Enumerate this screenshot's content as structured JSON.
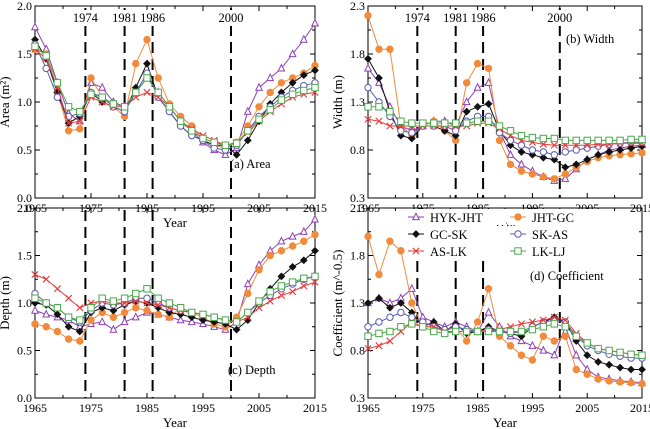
{
  "chart_data": [
    {
      "type": "line",
      "panel": "(a) Area",
      "xlabel": "Year",
      "ylabel": "Area (m²)",
      "xlim": [
        1965,
        2015
      ],
      "ylim": [
        0,
        2
      ],
      "xticks": [
        "1965",
        "1975",
        "1985",
        "1995",
        "2005",
        "2015"
      ],
      "yticks": [
        "0.0",
        "0.5",
        "1.0",
        "1.5",
        "2.0"
      ],
      "marked_years": [
        "1974",
        "1981",
        "1986",
        "2000"
      ],
      "x": [
        1965,
        1967,
        1969,
        1971,
        1973,
        1975,
        1977,
        1979,
        1981,
        1983,
        1985,
        1987,
        1989,
        1991,
        1993,
        1995,
        1997,
        1999,
        2001,
        2003,
        2005,
        2007,
        2009,
        2011,
        2013,
        2015
      ],
      "series": [
        {
          "name": "HYK-JHT",
          "color": "#8c3fb5",
          "marker": "triangle",
          "values": [
            1.78,
            1.55,
            1.2,
            0.88,
            0.8,
            1.2,
            1.15,
            1.0,
            0.95,
            1.1,
            1.25,
            1.1,
            0.95,
            0.8,
            0.7,
            0.58,
            0.5,
            0.45,
            0.52,
            0.9,
            1.15,
            1.25,
            1.35,
            1.5,
            1.65,
            1.82
          ]
        },
        {
          "name": "JHT-GC",
          "color": "#f28a3c",
          "marker": "circle",
          "values": [
            1.55,
            1.5,
            1.1,
            0.7,
            0.72,
            1.25,
            1.05,
            0.95,
            0.85,
            1.4,
            1.65,
            1.25,
            0.98,
            0.85,
            0.75,
            0.6,
            0.55,
            0.52,
            0.58,
            0.75,
            0.95,
            1.1,
            1.2,
            1.25,
            1.3,
            1.38
          ]
        },
        {
          "name": "GC-SK",
          "color": "#111111",
          "marker": "diamond",
          "values": [
            1.65,
            1.45,
            1.1,
            0.78,
            0.85,
            1.1,
            1.0,
            0.95,
            0.9,
            1.15,
            1.4,
            1.05,
            0.9,
            0.75,
            0.65,
            0.6,
            0.55,
            0.55,
            0.45,
            0.6,
            0.8,
            0.98,
            1.1,
            1.2,
            1.28,
            1.33
          ]
        },
        {
          "name": "SK-AS",
          "color": "#5a5ab0",
          "marker": "circle-open",
          "values": [
            1.6,
            1.35,
            1.05,
            0.85,
            0.88,
            1.1,
            1.05,
            0.95,
            0.9,
            1.1,
            1.3,
            1.05,
            0.9,
            0.75,
            0.65,
            0.6,
            0.52,
            0.5,
            0.55,
            0.7,
            0.85,
            0.95,
            1.05,
            1.12,
            1.17,
            1.2
          ]
        },
        {
          "name": "AS-LK",
          "color": "#e83a3a",
          "marker": "x",
          "values": [
            1.55,
            1.45,
            1.15,
            0.78,
            0.8,
            1.05,
            1.0,
            0.95,
            0.95,
            1.05,
            1.1,
            1.05,
            0.95,
            0.8,
            0.72,
            0.65,
            0.6,
            0.55,
            0.58,
            0.68,
            0.8,
            0.9,
            0.98,
            1.05,
            1.08,
            1.1
          ]
        },
        {
          "name": "LK-LJ",
          "color": "#4aa84a",
          "marker": "square-open",
          "values": [
            1.58,
            1.48,
            1.2,
            0.95,
            0.9,
            1.08,
            1.05,
            0.98,
            0.95,
            1.1,
            1.25,
            1.1,
            0.95,
            0.8,
            0.7,
            0.62,
            0.58,
            0.55,
            0.57,
            0.7,
            0.82,
            0.92,
            1.02,
            1.08,
            1.12,
            1.15
          ]
        }
      ]
    },
    {
      "type": "line",
      "panel": "(b) Width",
      "xlabel": "Year",
      "ylabel": "Width (m)",
      "xlim": [
        1965,
        2015
      ],
      "ylim": [
        0.3,
        2.3
      ],
      "xticks": [
        "1965",
        "1975",
        "1985",
        "1995",
        "2005",
        "2015"
      ],
      "yticks": [
        "0.3",
        "0.8",
        "1.3",
        "1.8",
        "2.3"
      ],
      "marked_years": [
        "1974",
        "1981",
        "1986",
        "2000"
      ],
      "x": [
        1965,
        1967,
        1969,
        1971,
        1973,
        1975,
        1977,
        1979,
        1981,
        1983,
        1985,
        1987,
        1989,
        1991,
        1993,
        1995,
        1997,
        1999,
        2001,
        2003,
        2005,
        2007,
        2009,
        2011,
        2013,
        2015
      ],
      "series": [
        {
          "name": "HYK-JHT",
          "color": "#8c3fb5",
          "marker": "triangle",
          "values": [
            1.65,
            1.5,
            1.25,
            1.05,
            1.0,
            1.05,
            1.1,
            1.1,
            1.05,
            1.3,
            1.45,
            1.5,
            1.0,
            0.75,
            0.65,
            0.58,
            0.52,
            0.48,
            0.5,
            0.6,
            0.7,
            0.75,
            0.8,
            0.82,
            0.84,
            0.85
          ]
        },
        {
          "name": "JHT-GC",
          "color": "#f28a3c",
          "marker": "circle",
          "values": [
            2.2,
            1.85,
            1.85,
            1.05,
            0.95,
            1.05,
            1.1,
            1.0,
            0.9,
            1.5,
            1.7,
            1.65,
            0.9,
            0.65,
            0.58,
            0.55,
            0.52,
            0.5,
            0.55,
            0.62,
            0.68,
            0.72,
            0.74,
            0.75,
            0.76,
            0.77
          ]
        },
        {
          "name": "GC-SK",
          "color": "#111111",
          "marker": "diamond",
          "values": [
            1.75,
            1.55,
            1.2,
            0.95,
            0.92,
            1.05,
            1.05,
            1.0,
            0.95,
            1.2,
            1.25,
            1.28,
            1.0,
            0.85,
            0.78,
            0.75,
            0.72,
            0.7,
            0.62,
            0.65,
            0.7,
            0.75,
            0.78,
            0.8,
            0.82,
            0.84
          ]
        },
        {
          "name": "SK-AS",
          "color": "#5a5ab0",
          "marker": "circle-open",
          "values": [
            1.45,
            1.3,
            1.15,
            1.0,
            0.98,
            1.05,
            1.05,
            1.05,
            1.0,
            1.1,
            1.15,
            1.15,
            0.98,
            0.9,
            0.85,
            0.8,
            0.78,
            0.75,
            0.78,
            0.8,
            0.82,
            0.84,
            0.86,
            0.87,
            0.88,
            0.88
          ]
        },
        {
          "name": "AS-LK",
          "color": "#e83a3a",
          "marker": "x",
          "values": [
            1.12,
            1.1,
            1.05,
            1.05,
            1.05,
            1.05,
            1.05,
            1.05,
            1.05,
            1.05,
            1.08,
            1.08,
            1.02,
            0.95,
            0.9,
            0.88,
            0.86,
            0.85,
            0.85,
            0.85,
            0.85,
            0.86,
            0.86,
            0.87,
            0.87,
            0.87
          ]
        },
        {
          "name": "LK-LJ",
          "color": "#4aa84a",
          "marker": "square-open",
          "values": [
            1.25,
            1.25,
            1.2,
            1.1,
            1.08,
            1.08,
            1.08,
            1.08,
            1.08,
            1.08,
            1.1,
            1.1,
            1.05,
            1.0,
            0.95,
            0.93,
            0.92,
            0.92,
            0.9,
            0.9,
            0.9,
            0.9,
            0.9,
            0.9,
            0.91,
            0.91
          ]
        }
      ]
    },
    {
      "type": "line",
      "panel": "(c) Depth",
      "xlabel": "Year",
      "ylabel": "Depth (m)",
      "xlim": [
        1965,
        2015
      ],
      "ylim": [
        0,
        2
      ],
      "xticks": [
        "1965",
        "1975",
        "1985",
        "1995",
        "2005",
        "2015"
      ],
      "yticks": [
        "0.0",
        "0.5",
        "1.0",
        "1.5",
        "2.0"
      ],
      "marked_years": [
        "1974",
        "1981",
        "1986",
        "2000"
      ],
      "x": [
        1965,
        1967,
        1969,
        1971,
        1973,
        1975,
        1977,
        1979,
        1981,
        1983,
        1985,
        1987,
        1989,
        1991,
        1993,
        1995,
        1997,
        1999,
        2001,
        2003,
        2005,
        2007,
        2009,
        2011,
        2013,
        2015
      ],
      "series": [
        {
          "name": "HYK-JHT",
          "color": "#8c3fb5",
          "marker": "triangle",
          "values": [
            0.92,
            0.88,
            0.85,
            0.82,
            0.75,
            0.78,
            0.8,
            0.72,
            0.8,
            0.85,
            0.9,
            0.88,
            0.85,
            0.82,
            0.8,
            0.78,
            0.75,
            0.72,
            0.8,
            1.2,
            1.4,
            1.55,
            1.65,
            1.7,
            1.75,
            1.88
          ]
        },
        {
          "name": "JHT-GC",
          "color": "#f28a3c",
          "marker": "circle",
          "values": [
            0.78,
            0.75,
            0.7,
            0.62,
            0.6,
            0.82,
            0.9,
            0.85,
            0.9,
            0.95,
            0.92,
            0.88,
            0.85,
            0.95,
            0.9,
            0.85,
            0.78,
            0.75,
            0.85,
            1.1,
            1.35,
            1.5,
            1.55,
            1.6,
            1.65,
            1.72
          ]
        },
        {
          "name": "GC-SK",
          "color": "#111111",
          "marker": "diamond",
          "values": [
            1.0,
            0.98,
            0.88,
            0.75,
            0.7,
            0.9,
            0.95,
            0.92,
            0.98,
            1.02,
            1.0,
            0.95,
            0.9,
            0.88,
            0.85,
            0.82,
            0.8,
            0.78,
            0.72,
            0.82,
            1.0,
            1.15,
            1.28,
            1.38,
            1.45,
            1.55
          ]
        },
        {
          "name": "SK-AS",
          "color": "#5a5ab0",
          "marker": "circle-open",
          "values": [
            1.1,
            1.0,
            0.95,
            0.85,
            0.8,
            0.92,
            1.0,
            0.98,
            1.0,
            1.05,
            1.05,
            1.0,
            0.95,
            0.92,
            0.9,
            0.88,
            0.85,
            0.82,
            0.8,
            0.9,
            1.0,
            1.08,
            1.15,
            1.2,
            1.25,
            1.28
          ]
        },
        {
          "name": "AS-LK",
          "color": "#e83a3a",
          "marker": "x",
          "values": [
            1.3,
            1.25,
            1.15,
            1.05,
            0.95,
            1.0,
            1.02,
            1.0,
            1.0,
            1.02,
            1.0,
            0.98,
            0.95,
            0.92,
            0.9,
            0.88,
            0.85,
            0.82,
            0.8,
            0.85,
            0.95,
            1.02,
            1.08,
            1.12,
            1.18,
            1.22
          ]
        },
        {
          "name": "LK-LJ",
          "color": "#4aa84a",
          "marker": "square-open",
          "values": [
            1.05,
            1.0,
            0.95,
            0.85,
            0.82,
            0.95,
            1.05,
            1.02,
            1.05,
            1.1,
            1.15,
            1.05,
            1.0,
            0.95,
            0.9,
            0.88,
            0.85,
            0.82,
            0.8,
            0.9,
            1.02,
            1.12,
            1.18,
            1.22,
            1.26,
            1.28
          ]
        }
      ]
    },
    {
      "type": "line",
      "panel": "(d) Coefficient",
      "xlabel": "Year",
      "ylabel": "Coefficient (m^-0.5)",
      "xlim": [
        1965,
        2015
      ],
      "ylim": [
        0.3,
        2.3
      ],
      "xticks": [
        "1965",
        "1975",
        "1985",
        "1995",
        "2005",
        "2015"
      ],
      "yticks": [
        "0.3",
        "0.8",
        "1.3",
        "1.8",
        "2.3"
      ],
      "marked_years": [
        "1974",
        "1981",
        "1986",
        "2000"
      ],
      "x": [
        1965,
        1967,
        1969,
        1971,
        1973,
        1975,
        1977,
        1979,
        1981,
        1983,
        1985,
        1987,
        1989,
        1991,
        1993,
        1995,
        1997,
        1999,
        2001,
        2003,
        2005,
        2007,
        2009,
        2011,
        2013,
        2015
      ],
      "series": [
        {
          "name": "HYK-JHT",
          "color": "#8c3fb5",
          "marker": "triangle",
          "values": [
            1.3,
            1.35,
            1.3,
            1.35,
            1.45,
            1.15,
            1.1,
            1.05,
            1.1,
            1.05,
            1.0,
            1.2,
            1.05,
            0.95,
            0.9,
            0.85,
            0.8,
            0.75,
            1.05,
            0.75,
            0.6,
            0.52,
            0.5,
            0.48,
            0.47,
            0.46
          ]
        },
        {
          "name": "JHT-GC",
          "color": "#f28a3c",
          "marker": "circle",
          "values": [
            2.0,
            1.6,
            1.95,
            1.85,
            1.3,
            1.05,
            1.05,
            1.0,
            1.05,
            0.9,
            1.1,
            1.45,
            0.95,
            0.85,
            0.75,
            0.7,
            0.95,
            0.9,
            0.95,
            0.6,
            0.55,
            0.5,
            0.48,
            0.47,
            0.46,
            0.45
          ]
        },
        {
          "name": "GC-SK",
          "color": "#111111",
          "marker": "diamond",
          "values": [
            1.3,
            1.35,
            1.25,
            1.3,
            1.2,
            1.05,
            1.1,
            1.0,
            1.08,
            0.98,
            1.0,
            1.05,
            1.0,
            0.98,
            0.95,
            1.05,
            1.1,
            1.15,
            1.1,
            0.9,
            0.75,
            0.68,
            0.65,
            0.62,
            0.6,
            0.6
          ]
        },
        {
          "name": "SK-AS",
          "color": "#5a5ab0",
          "marker": "circle-open",
          "values": [
            1.05,
            1.1,
            1.15,
            1.2,
            1.15,
            1.1,
            1.05,
            1.02,
            1.05,
            1.02,
            1.0,
            1.02,
            1.0,
            0.98,
            1.0,
            1.05,
            1.1,
            1.12,
            1.1,
            0.95,
            0.85,
            0.8,
            0.76,
            0.74,
            0.72,
            0.72
          ]
        },
        {
          "name": "AS-LK",
          "color": "#e83a3a",
          "marker": "x",
          "values": [
            0.82,
            0.85,
            0.9,
            1.0,
            1.1,
            1.05,
            1.05,
            1.0,
            1.0,
            1.0,
            1.0,
            1.02,
            1.02,
            1.05,
            1.08,
            1.1,
            1.12,
            1.15,
            1.12,
            0.98,
            0.88,
            0.82,
            0.8,
            0.78,
            0.76,
            0.75
          ]
        },
        {
          "name": "LK-LJ",
          "color": "#4aa84a",
          "marker": "square-open",
          "values": [
            0.95,
            0.98,
            1.0,
            1.05,
            1.08,
            1.05,
            1.0,
            0.98,
            1.0,
            1.0,
            1.0,
            1.0,
            1.0,
            1.0,
            1.0,
            1.02,
            1.05,
            1.08,
            1.05,
            0.95,
            0.88,
            0.82,
            0.8,
            0.78,
            0.76,
            0.75
          ]
        }
      ]
    }
  ]
}
